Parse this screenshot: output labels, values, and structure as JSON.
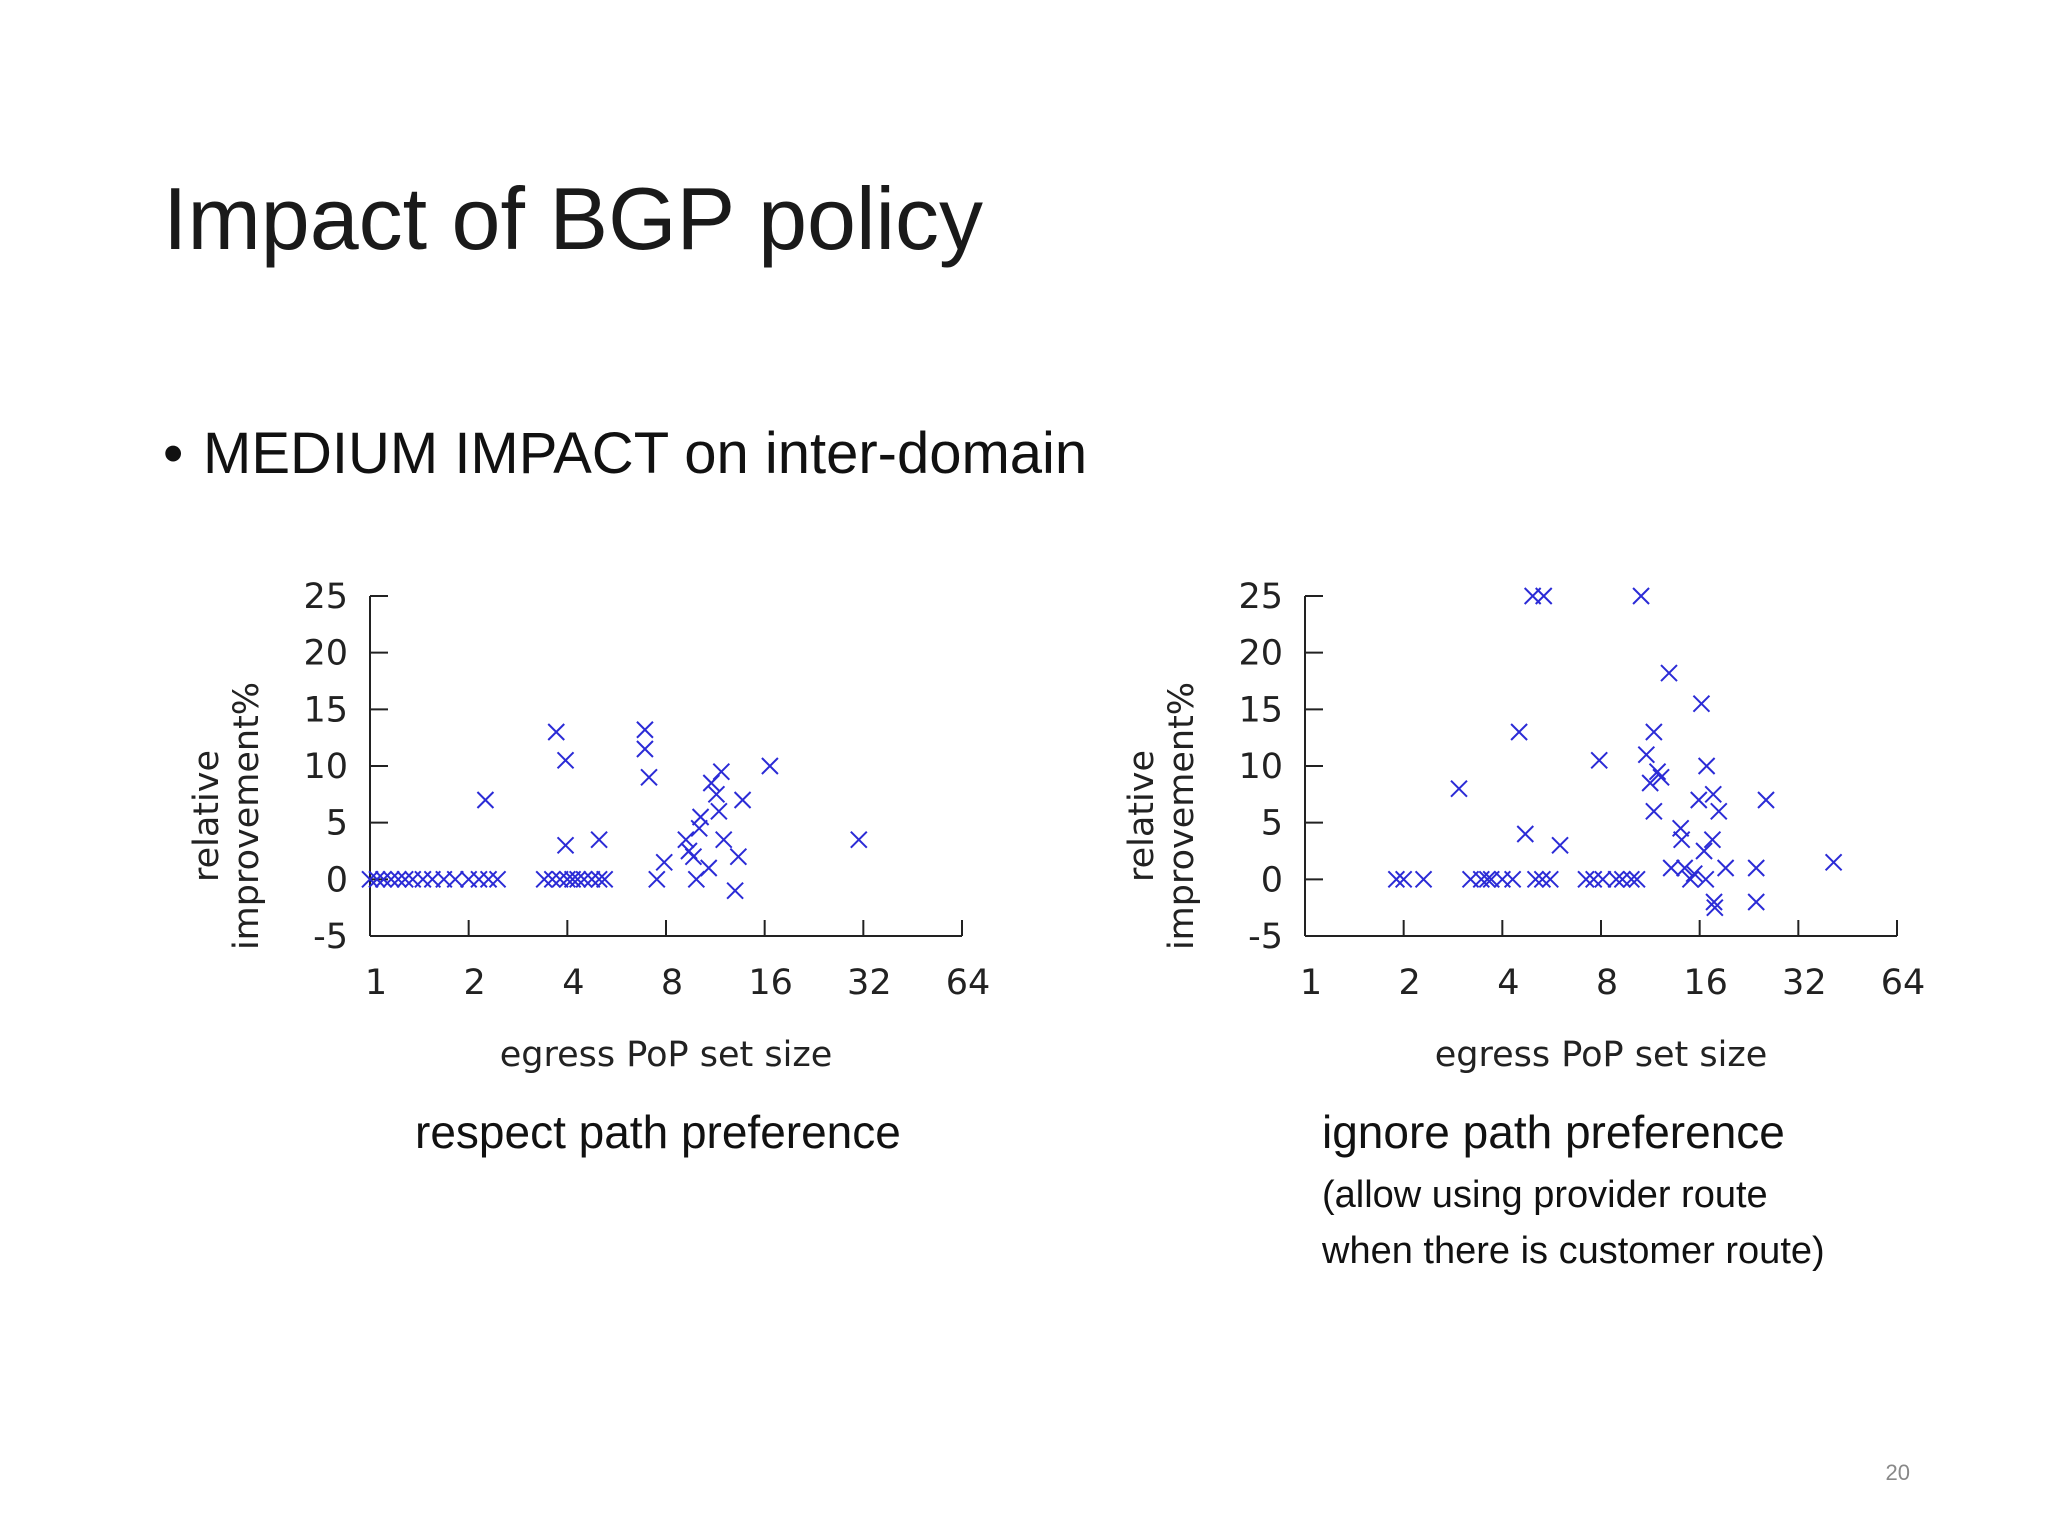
{
  "slide": {
    "title": "Impact of BGP policy",
    "bullet": "MEDIUM IMPACT on inter-domain",
    "bullet_marker": "•",
    "page_number": "20"
  },
  "chart_data": [
    {
      "type": "scatter",
      "xscale": "log2",
      "xlim": [
        1,
        64
      ],
      "ylim": [
        -5,
        25
      ],
      "xticks": [
        1,
        2,
        4,
        8,
        16,
        32,
        64
      ],
      "yticks": [
        -5,
        0,
        5,
        10,
        15,
        20,
        25
      ],
      "xlabel": "egress PoP set size",
      "ylabel_lines": [
        "relative",
        "improvement%"
      ],
      "caption": "respect path preference",
      "caption_sub": [],
      "marker": "x",
      "color": "#2b2bd6",
      "points": [
        [
          1.0,
          0
        ],
        [
          1.05,
          0
        ],
        [
          1.1,
          0
        ],
        [
          1.16,
          0
        ],
        [
          1.22,
          0
        ],
        [
          1.28,
          0
        ],
        [
          1.35,
          0
        ],
        [
          1.45,
          0
        ],
        [
          1.55,
          0
        ],
        [
          1.68,
          0
        ],
        [
          1.82,
          0
        ],
        [
          2.0,
          0
        ],
        [
          2.15,
          0
        ],
        [
          2.3,
          0
        ],
        [
          2.45,
          0
        ],
        [
          2.25,
          7
        ],
        [
          3.4,
          0
        ],
        [
          3.6,
          0
        ],
        [
          3.8,
          0
        ],
        [
          4.0,
          0
        ],
        [
          4.15,
          0
        ],
        [
          4.3,
          0
        ],
        [
          4.5,
          0
        ],
        [
          4.75,
          0
        ],
        [
          5.0,
          0
        ],
        [
          5.2,
          0
        ],
        [
          3.7,
          13
        ],
        [
          3.95,
          10.5
        ],
        [
          3.95,
          3
        ],
        [
          5.0,
          3.5
        ],
        [
          6.9,
          13.2
        ],
        [
          6.9,
          11.5
        ],
        [
          7.1,
          9
        ],
        [
          7.5,
          0
        ],
        [
          7.9,
          1.5
        ],
        [
          9.2,
          3.5
        ],
        [
          9.4,
          2.5
        ],
        [
          9.7,
          2
        ],
        [
          9.9,
          0
        ],
        [
          10.1,
          4.5
        ],
        [
          10.2,
          5.5
        ],
        [
          10.8,
          1
        ],
        [
          11.0,
          8.5
        ],
        [
          11.4,
          7.5
        ],
        [
          11.6,
          6
        ],
        [
          11.8,
          9.5
        ],
        [
          12.0,
          3.5
        ],
        [
          13.3,
          2
        ],
        [
          13.0,
          -1
        ],
        [
          13.7,
          7
        ],
        [
          16.6,
          10
        ],
        [
          31.0,
          3.5
        ]
      ]
    },
    {
      "type": "scatter",
      "xscale": "log2",
      "xlim": [
        1,
        64
      ],
      "ylim": [
        -5,
        25
      ],
      "xticks": [
        1,
        2,
        4,
        8,
        16,
        32,
        64
      ],
      "yticks": [
        -5,
        0,
        5,
        10,
        15,
        20,
        25
      ],
      "xlabel": "egress PoP set size",
      "ylabel_lines": [
        "relative",
        "improvement%"
      ],
      "caption": "ignore path preference",
      "caption_sub": [
        "(allow using provider route",
        "when there is customer route)"
      ],
      "marker": "x",
      "color": "#2b2bd6",
      "points": [
        [
          1.9,
          0
        ],
        [
          2.0,
          0
        ],
        [
          2.3,
          0
        ],
        [
          2.95,
          8
        ],
        [
          3.2,
          0
        ],
        [
          3.45,
          0
        ],
        [
          3.6,
          0
        ],
        [
          3.7,
          0
        ],
        [
          4.0,
          0
        ],
        [
          4.3,
          0
        ],
        [
          4.5,
          13
        ],
        [
          4.7,
          4
        ],
        [
          5.05,
          0
        ],
        [
          5.3,
          0
        ],
        [
          5.6,
          0
        ],
        [
          4.95,
          25
        ],
        [
          5.35,
          25
        ],
        [
          6.0,
          3
        ],
        [
          7.2,
          0
        ],
        [
          7.6,
          0
        ],
        [
          7.9,
          10.5
        ],
        [
          8.1,
          0
        ],
        [
          8.9,
          0
        ],
        [
          9.3,
          0
        ],
        [
          9.9,
          0
        ],
        [
          10.3,
          0
        ],
        [
          10.6,
          25
        ],
        [
          11.0,
          11
        ],
        [
          11.3,
          8.5
        ],
        [
          11.6,
          13
        ],
        [
          11.9,
          9.5
        ],
        [
          11.6,
          6
        ],
        [
          12.2,
          9
        ],
        [
          12.9,
          18.2
        ],
        [
          13.1,
          1
        ],
        [
          14.0,
          4.5
        ],
        [
          14.1,
          3.5
        ],
        [
          14.4,
          1
        ],
        [
          15.0,
          0
        ],
        [
          15.4,
          0.5
        ],
        [
          15.9,
          7
        ],
        [
          16.2,
          15.5
        ],
        [
          16.5,
          2.5
        ],
        [
          16.8,
          10
        ],
        [
          16.7,
          0
        ],
        [
          17.5,
          3.5
        ],
        [
          17.6,
          7.5
        ],
        [
          17.7,
          -2
        ],
        [
          17.8,
          -2.5
        ],
        [
          18.3,
          6
        ],
        [
          19.2,
          1
        ],
        [
          23.8,
          1
        ],
        [
          23.8,
          -2
        ],
        [
          25.5,
          7
        ],
        [
          41.0,
          1.5
        ]
      ]
    }
  ]
}
